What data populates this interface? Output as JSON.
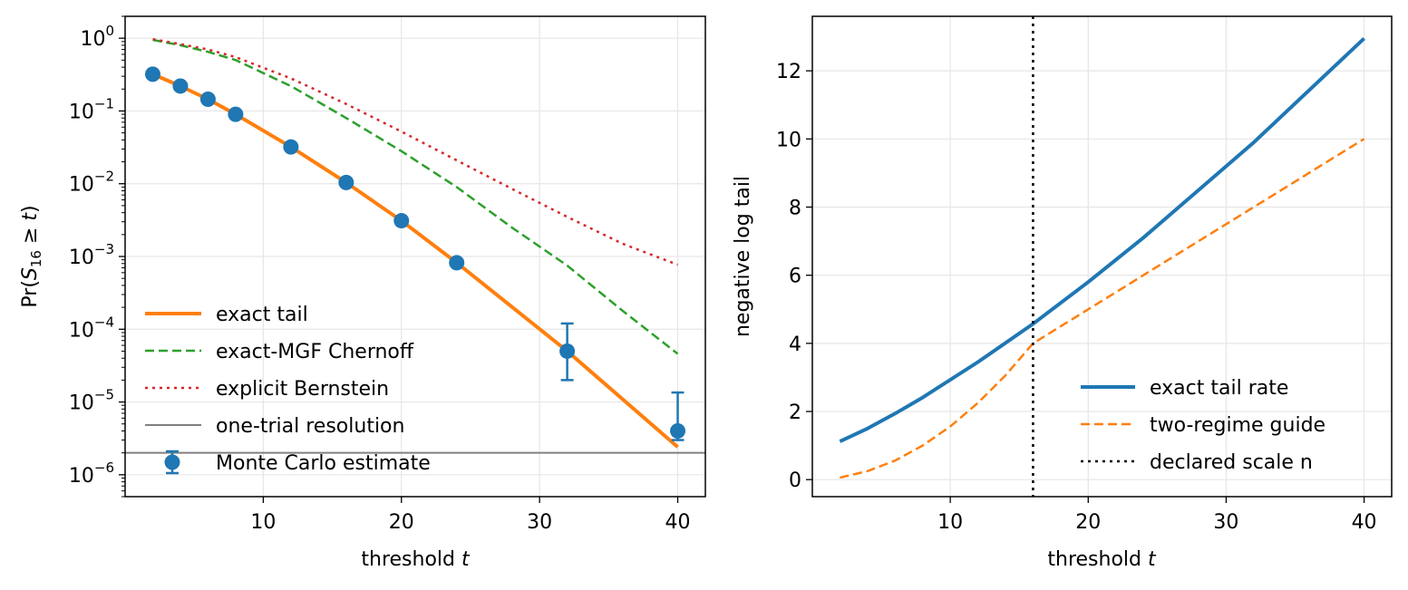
{
  "chart_data": [
    {
      "type": "line",
      "xlabel": "threshold t",
      "ylabel": "Pr(S16 ≥ t)",
      "ylabel_parts": {
        "pre": "Pr(",
        "var": "S",
        "sub": "16",
        "rel": " ≥ ",
        "t": "t",
        "post": ")"
      },
      "xlabel_parts": {
        "text": "threshold ",
        "var": "t"
      },
      "yscale": "log",
      "xlim": [
        0,
        42
      ],
      "ylim": [
        5e-07,
        2
      ],
      "grid": true,
      "legend_loc": "lower left",
      "xticks": [
        10,
        20,
        30,
        40
      ],
      "xtick_labels": [
        "10",
        "20",
        "30",
        "40"
      ],
      "yticks": [
        1,
        0.1,
        0.01,
        0.001,
        0.0001,
        1e-05,
        1e-06
      ],
      "ytick_labels": [
        {
          "base": "10",
          "exp": "0"
        },
        {
          "base": "10",
          "exp": "−1"
        },
        {
          "base": "10",
          "exp": "−2"
        },
        {
          "base": "10",
          "exp": "−3"
        },
        {
          "base": "10",
          "exp": "−4"
        },
        {
          "base": "10",
          "exp": "−5"
        },
        {
          "base": "10",
          "exp": "−6"
        }
      ],
      "series": [
        {
          "name": "exact tail",
          "style": "solid",
          "color": "#ff7f0e",
          "width": 4,
          "x": [
            2,
            4,
            6,
            8,
            12,
            16,
            20,
            24,
            32,
            40
          ],
          "y": [
            0.32,
            0.22,
            0.145,
            0.09,
            0.032,
            0.0104,
            0.0031,
            0.00082,
            5e-05,
            2.4e-06
          ]
        },
        {
          "name": "exact-MGF Chernoff",
          "style": "dashed",
          "color": "#2ca02c",
          "width": 2.5,
          "x": [
            2,
            4,
            6,
            8,
            12,
            16,
            20,
            24,
            28,
            32,
            36,
            40
          ],
          "y": [
            0.95,
            0.8,
            0.65,
            0.5,
            0.22,
            0.08,
            0.028,
            0.009,
            0.0025,
            0.00075,
            0.00018,
            4.6e-05
          ]
        },
        {
          "name": "explicit Bernstein",
          "style": "dotted",
          "color": "#d62728",
          "width": 2.5,
          "x": [
            2,
            4,
            6,
            8,
            12,
            16,
            20,
            24,
            28,
            32,
            36,
            40
          ],
          "y": [
            0.97,
            0.83,
            0.7,
            0.55,
            0.28,
            0.125,
            0.052,
            0.021,
            0.0085,
            0.0035,
            0.0015,
            0.00077
          ]
        },
        {
          "name": "one-trial resolution",
          "style": "hline",
          "color": "#808080",
          "width": 2,
          "y_const": 2e-06
        },
        {
          "name": "Monte Carlo estimate",
          "style": "errorbar",
          "color": "#1f77b4",
          "x": [
            2,
            4,
            6,
            8,
            12,
            16,
            20,
            24,
            32,
            40
          ],
          "y": [
            0.32,
            0.22,
            0.145,
            0.09,
            0.032,
            0.0104,
            0.0031,
            0.00082,
            5e-05,
            4e-06
          ],
          "yerr_low": [
            0.32,
            0.22,
            0.145,
            0.09,
            0.032,
            0.0104,
            0.0031,
            0.00082,
            3e-05,
            1e-06
          ],
          "yerr_high": [
            0.32,
            0.22,
            0.145,
            0.09,
            0.032,
            0.0104,
            0.0031,
            0.00082,
            7e-05,
            9.5e-06
          ]
        }
      ]
    },
    {
      "type": "line",
      "xlabel": "threshold t",
      "xlabel_parts": {
        "text": "threshold ",
        "var": "t"
      },
      "ylabel": "negative log tail",
      "xlim": [
        0,
        42
      ],
      "ylim": [
        -0.5,
        13.6
      ],
      "grid": true,
      "legend_loc": "lower right",
      "xticks": [
        10,
        20,
        30,
        40
      ],
      "xtick_labels": [
        "10",
        "20",
        "30",
        "40"
      ],
      "yticks": [
        0,
        2,
        4,
        6,
        8,
        10,
        12
      ],
      "ytick_labels": [
        "0",
        "2",
        "4",
        "6",
        "8",
        "10",
        "12"
      ],
      "series": [
        {
          "name": "exact tail rate",
          "style": "solid",
          "color": "#1f77b4",
          "width": 4,
          "x": [
            2,
            4,
            6,
            8,
            12,
            16,
            20,
            24,
            32,
            40
          ],
          "y": [
            1.12,
            1.5,
            1.94,
            2.41,
            3.45,
            4.57,
            5.8,
            7.1,
            9.9,
            12.95
          ]
        },
        {
          "name": "two-regime guide",
          "style": "dashed",
          "color": "#ff7f0e",
          "width": 2.5,
          "x": [
            2,
            4,
            6,
            8,
            10,
            12,
            14,
            16,
            20,
            24,
            28,
            32,
            36,
            40
          ],
          "y": [
            0.06,
            0.25,
            0.56,
            1.0,
            1.56,
            2.25,
            3.06,
            4.0,
            5.0,
            6.0,
            7.0,
            8.0,
            9.0,
            10.0
          ]
        },
        {
          "name": "declared scale n",
          "style": "vline",
          "color": "#000000",
          "width": 2.5,
          "x_const": 16
        }
      ]
    }
  ]
}
